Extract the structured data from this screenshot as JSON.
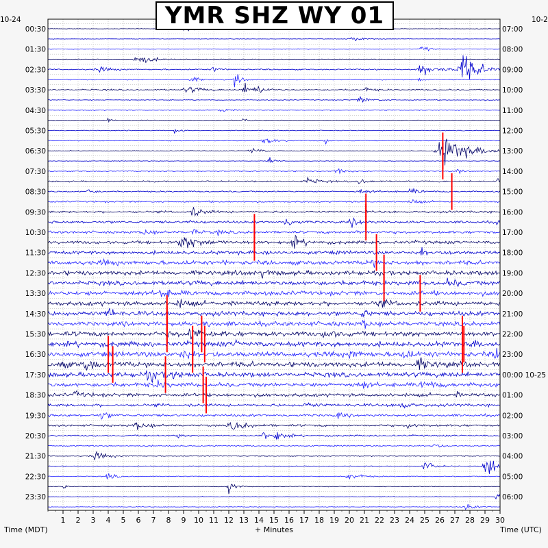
{
  "chart_data": {
    "type": "line",
    "title": "YMR SHZ WY 01",
    "xlabel": "+ Minutes",
    "ylabel_left": "Time (MDT)",
    "ylabel_right": "Time (UTC)",
    "date_left": "10-24",
    "date_right_top": "10-2",
    "xlim": [
      0,
      30
    ],
    "x_ticks": [
      1,
      2,
      3,
      4,
      5,
      6,
      7,
      8,
      9,
      10,
      11,
      12,
      13,
      14,
      15,
      16,
      17,
      18,
      19,
      20,
      21,
      22,
      23,
      24,
      25,
      26,
      27,
      28,
      29,
      30
    ],
    "left_labels": [
      "00:30",
      "01:30",
      "02:30",
      "03:30",
      "04:30",
      "05:30",
      "06:30",
      "07:30",
      "08:30",
      "09:30",
      "10:30",
      "11:30",
      "12:30",
      "13:30",
      "14:30",
      "15:30",
      "16:30",
      "17:30",
      "18:30",
      "19:30",
      "20:30",
      "21:30",
      "22:30",
      "23:30"
    ],
    "right_labels": [
      "07:00",
      "08:00",
      "09:00",
      "10:00",
      "11:00",
      "12:00",
      "13:00",
      "14:00",
      "15:00",
      "16:00",
      "17:00",
      "18:00",
      "19:00",
      "20:00",
      "21:00",
      "22:00",
      "23:00",
      "00:00 10-25",
      "01:00",
      "02:00",
      "03:00",
      "04:00",
      "05:00",
      "06:00"
    ],
    "trace_rows": 48,
    "trace_colors": [
      "#000066",
      "#0000cc",
      "#2222ff"
    ],
    "clip_color": "#ff0000",
    "row_activity": [
      0.3,
      0.3,
      0.35,
      0.4,
      0.8,
      0.6,
      0.9,
      0.5,
      0.5,
      0.4,
      0.5,
      0.5,
      0.4,
      0.35,
      0.7,
      0.9,
      0.9,
      1.0,
      1.3,
      1.5,
      1.6,
      2.0,
      2.2,
      2.6,
      2.8,
      2.8,
      2.8,
      2.8,
      2.8,
      2.8,
      3.0,
      3.2,
      3.2,
      3.2,
      3.0,
      2.6,
      2.2,
      1.8,
      1.6,
      1.3,
      1.0,
      0.8,
      0.6,
      0.5,
      0.5,
      0.45,
      0.4,
      0.4
    ]
  }
}
